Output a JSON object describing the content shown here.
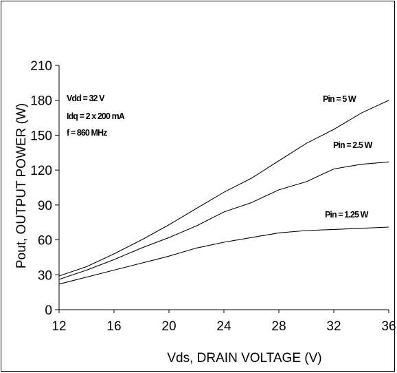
{
  "chart_data": {
    "type": "line",
    "xlabel": "Vds, DRAIN VOLTAGE (V)",
    "ylabel": "Pout, OUTPUT POWER (W)",
    "xlim": [
      12,
      36
    ],
    "ylim": [
      0,
      210
    ],
    "x_ticks": [
      12,
      16,
      20,
      24,
      28,
      32,
      36
    ],
    "y_ticks": [
      0,
      30,
      60,
      90,
      120,
      150,
      180,
      210
    ],
    "grid": false,
    "conditions": [
      "Vdd = 32 V",
      "Idq = 2 x 200 mA",
      "f = 860 MHz"
    ],
    "x": [
      12,
      14,
      16,
      18,
      20,
      22,
      24,
      26,
      28,
      30,
      32,
      34,
      36
    ],
    "series": [
      {
        "name": "Pin = 5 W",
        "values": [
          29,
          37,
          48,
          60,
          73,
          87,
          101,
          113,
          128,
          143,
          155,
          169,
          180
        ]
      },
      {
        "name": "Pin = 2.5 W",
        "values": [
          26,
          34,
          43,
          53,
          62,
          72,
          84,
          92,
          103,
          110,
          121,
          125,
          127
        ]
      },
      {
        "name": "Pin = 1.25 W",
        "values": [
          22,
          28,
          34,
          40,
          46,
          53,
          58,
          62,
          66,
          68,
          69,
          70,
          71
        ]
      }
    ]
  }
}
